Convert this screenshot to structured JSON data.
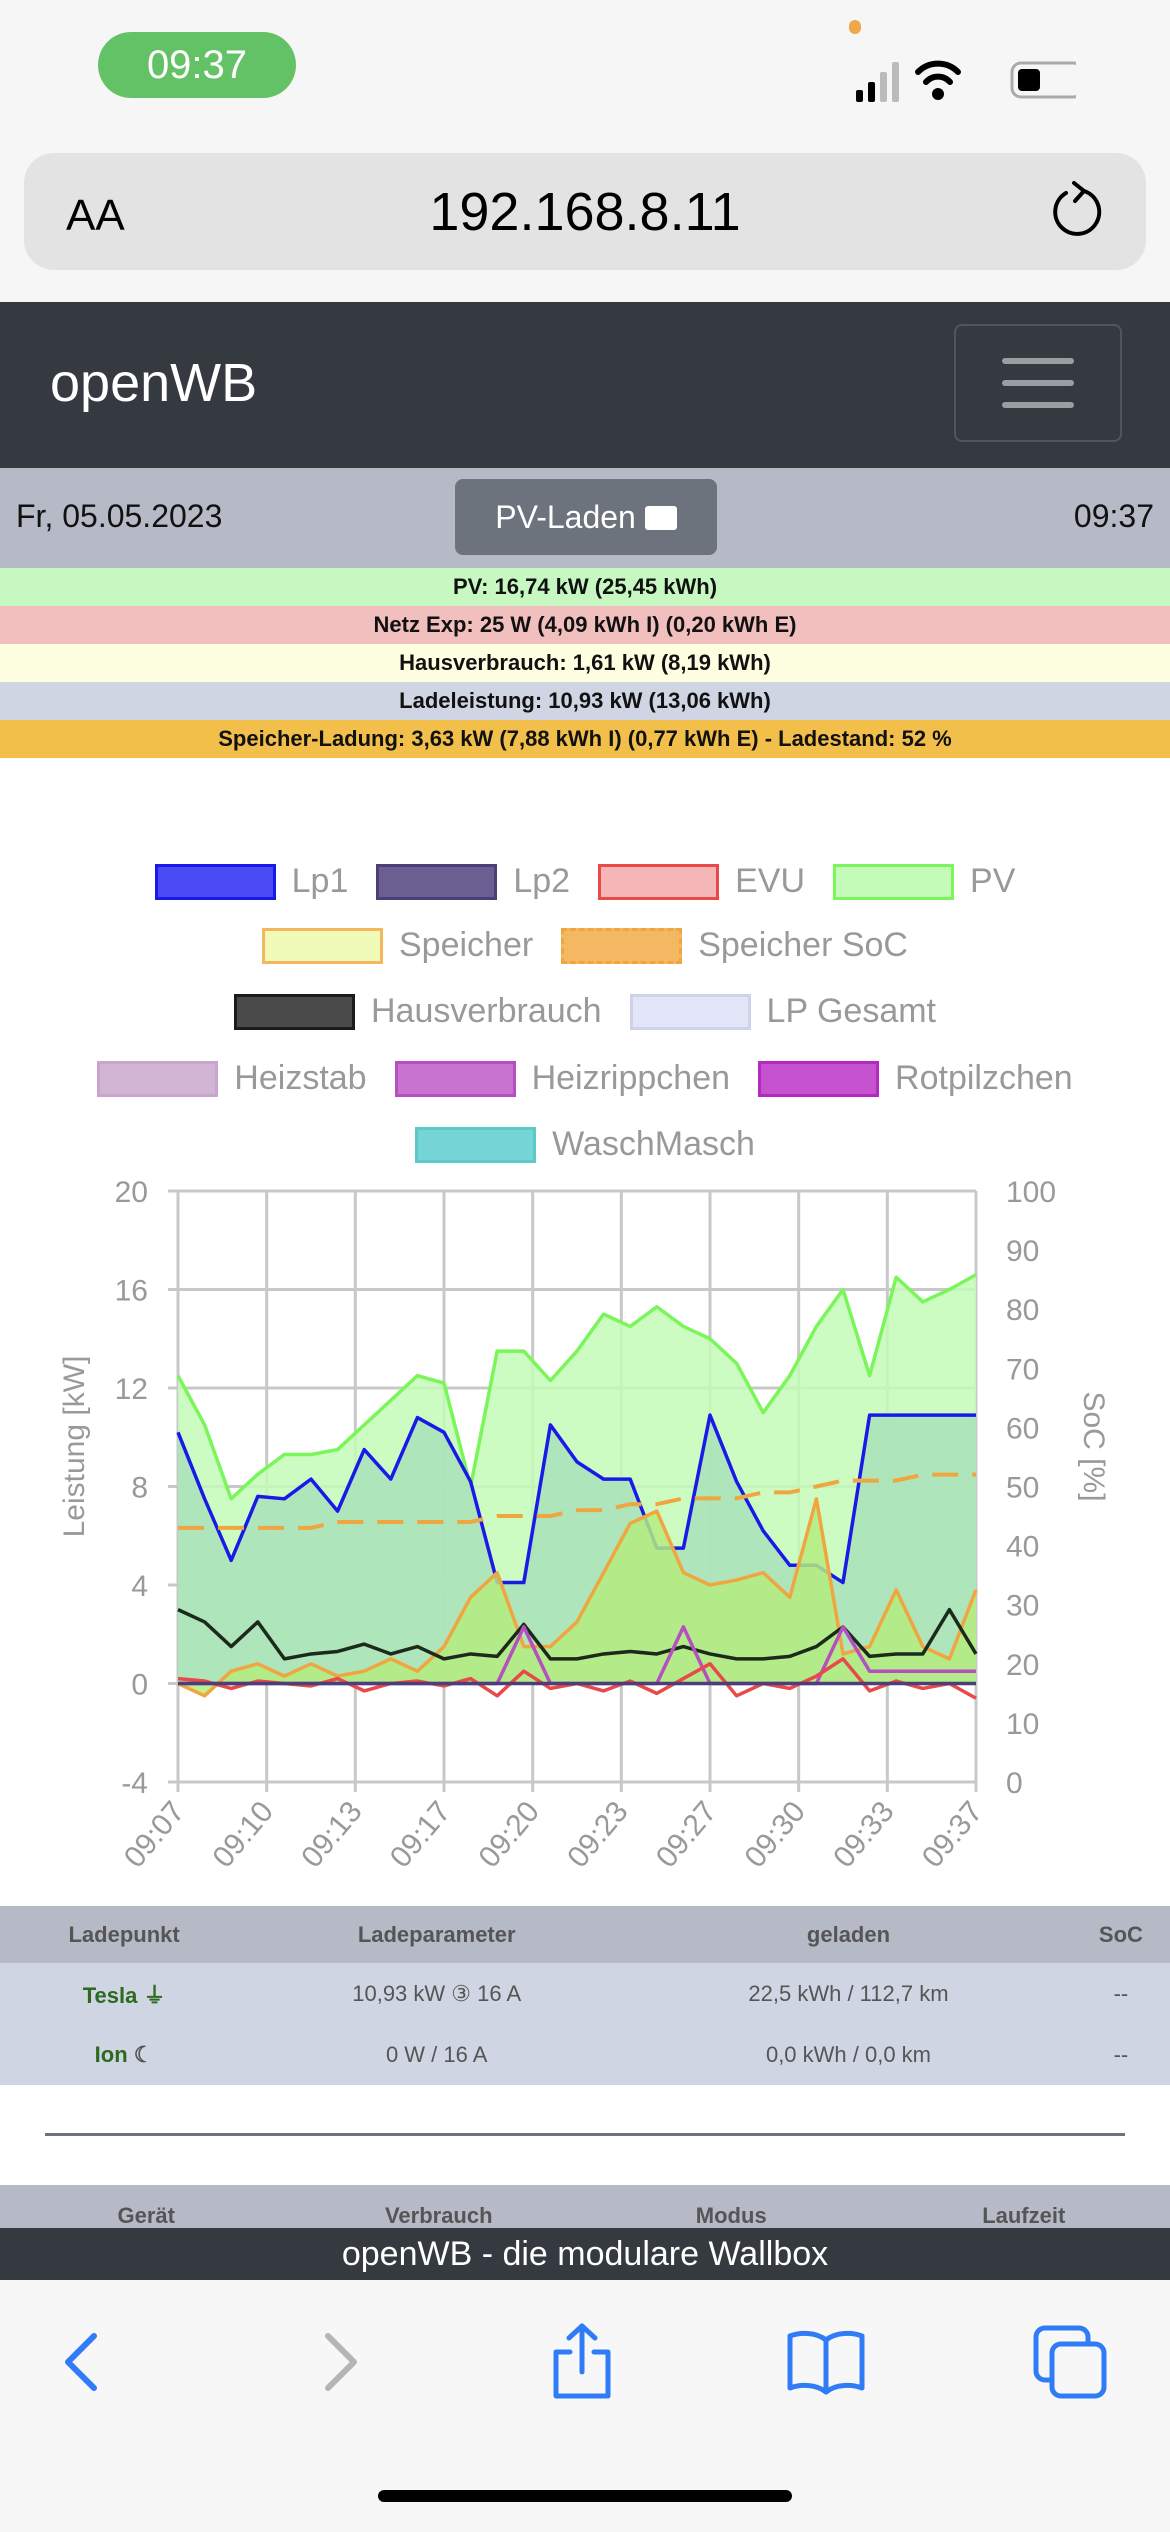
{
  "statusbar": {
    "time": "09:37"
  },
  "browser": {
    "text_size_label": "AA",
    "url": "192.168.8.11"
  },
  "nav": {
    "brand": "openWB"
  },
  "datebar": {
    "date": "Fr, 05.05.2023",
    "mode_button": "PV-Laden",
    "time": "09:37"
  },
  "status_rows": [
    {
      "text": "PV: 16,74 kW (25,45 kWh)",
      "color": "#c7f8c1"
    },
    {
      "text": "Netz Exp: 25 W (4,09 kWh I) (0,20 kWh E)",
      "color": "#f2bfbf"
    },
    {
      "text": "Hausverbrauch: 1,61 kW (8,19 kWh)",
      "color": "#fefee0"
    },
    {
      "text": "Ladeleistung: 10,93 kW (13,06 kWh)",
      "color": "#d0d5e4"
    },
    {
      "text": "Speicher-Ladung: 3,63 kW (7,88 kWh I) (0,77 kWh E) - Ladestand: 52 %",
      "color": "#f2bf4a"
    }
  ],
  "legend": [
    [
      {
        "label": "Lp1",
        "fill": "#4b4bf5",
        "stroke": "#1a1ae8"
      },
      {
        "label": "Lp2",
        "fill": "#6b5f92",
        "stroke": "#4a3f78"
      },
      {
        "label": "EVU",
        "fill": "#f4b6b6",
        "stroke": "#e84a4a"
      },
      {
        "label": "PV",
        "fill": "#c4fbb8",
        "stroke": "#7af55a"
      }
    ],
    [
      {
        "label": "Speicher",
        "fill": "#f1fbb8",
        "stroke": "#f3b760"
      },
      {
        "label": "Speicher SoC",
        "fill": "#f4b762",
        "stroke": "#f0a640"
      }
    ],
    [
      {
        "label": "Hausverbrauch",
        "fill": "#4a4a4a",
        "stroke": "#1c1c1c"
      },
      {
        "label": "LP Gesamt",
        "fill": "#e3e5f8",
        "stroke": "#d0d2e8"
      }
    ],
    [
      {
        "label": "Heizstab",
        "fill": "#d2b4d4",
        "stroke": "#c9a4cc"
      },
      {
        "label": "Heizrippchen",
        "fill": "#c874d0",
        "stroke": "#b550c0"
      },
      {
        "label": "Rotpilzchen",
        "fill": "#c652cf",
        "stroke": "#b42ac0"
      }
    ],
    [
      {
        "label": "WaschMasch",
        "fill": "#76d6d6",
        "stroke": "#5cc8c8"
      }
    ]
  ],
  "chart_data": {
    "type": "line",
    "x_ticks": [
      "09:07",
      "09:10",
      "09:13",
      "09:17",
      "09:20",
      "09:23",
      "09:27",
      "09:30",
      "09:33",
      "09:37"
    ],
    "x_minutes_from_start": [
      0,
      1,
      2,
      3,
      4,
      5,
      6,
      7,
      8,
      9,
      10,
      11,
      12,
      13,
      14,
      15,
      16,
      17,
      18,
      19,
      20,
      21,
      22,
      23,
      24,
      25,
      26,
      27,
      28,
      29,
      30
    ],
    "ylabel": "Leistung [kW]",
    "ylim": [
      -4,
      20
    ],
    "yticks": [
      -4,
      0,
      4,
      8,
      12,
      16,
      20
    ],
    "y2label": "SoC [%]",
    "y2lim": [
      0,
      100
    ],
    "y2ticks": [
      0,
      10,
      20,
      30,
      40,
      50,
      60,
      70,
      80,
      90,
      100
    ],
    "grid": true,
    "series": [
      {
        "name": "PV",
        "axis": "left",
        "color": "#7af55a",
        "fill": "#c4fbb8",
        "values": [
          12.5,
          10.5,
          7.5,
          8.5,
          9.3,
          9.3,
          9.5,
          10.5,
          11.5,
          12.5,
          12.2,
          8,
          13.5,
          13.5,
          12.3,
          13.5,
          15,
          14.5,
          15.3,
          14.5,
          14,
          13,
          11,
          12.5,
          14.5,
          16,
          12.5,
          16.5,
          15.5,
          16,
          16.6
        ]
      },
      {
        "name": "Lp1",
        "axis": "left",
        "color": "#1a1ae8",
        "fill": "#a8e0b8",
        "values": [
          10.2,
          7.5,
          5,
          7.6,
          7.5,
          8.3,
          7,
          9.5,
          8.3,
          10.8,
          10.2,
          8.2,
          4.1,
          4.1,
          10.5,
          9,
          8.3,
          8.3,
          5.5,
          5.5,
          10.9,
          8.2,
          6.2,
          4.8,
          4.8,
          4.1,
          10.9,
          10.9,
          10.9,
          10.9,
          10.9
        ]
      },
      {
        "name": "Speicher",
        "axis": "left",
        "color": "#f0a640",
        "fill": "#b5ec80",
        "values": [
          0,
          -0.5,
          0.5,
          0.8,
          0.3,
          0.8,
          0.3,
          0.5,
          1,
          0.5,
          1.5,
          3.5,
          4.5,
          1.5,
          1.5,
          2.5,
          4.5,
          6.5,
          7,
          4.5,
          4,
          4.2,
          4.5,
          3.5,
          7.5,
          1.2,
          1.5,
          3.8,
          1.5,
          1,
          3.8
        ]
      },
      {
        "name": "Hausverbrauch",
        "axis": "left",
        "color": "#1c2a1c",
        "values": [
          3,
          2.5,
          1.5,
          2.5,
          1,
          1.2,
          1.3,
          1.6,
          1.2,
          1.5,
          1,
          1.2,
          1.1,
          2.4,
          1,
          1,
          1.2,
          1.3,
          1.2,
          1.5,
          1.2,
          1,
          1,
          1.1,
          1.5,
          2.3,
          1.1,
          1.2,
          1.2,
          3,
          1.2
        ]
      },
      {
        "name": "Heizrippchen",
        "axis": "left",
        "color": "#b550c0",
        "values": [
          0,
          0,
          0,
          0,
          0,
          0,
          0,
          0,
          0,
          0,
          0,
          0,
          0,
          2.3,
          0,
          0,
          0,
          0,
          0,
          2.3,
          0,
          0,
          0,
          0,
          0,
          2.3,
          0.5,
          0.5,
          0.5,
          0.5,
          0.5
        ]
      },
      {
        "name": "EVU",
        "axis": "left",
        "color": "#e84a4a",
        "values": [
          0.2,
          0.1,
          -0.2,
          0.1,
          0,
          -0.1,
          0.2,
          -0.3,
          0,
          0.1,
          -0.1,
          0.2,
          -0.5,
          0.5,
          -0.2,
          0,
          -0.3,
          0.1,
          -0.4,
          0.2,
          0.8,
          -0.5,
          0,
          -0.2,
          0.3,
          1,
          -0.3,
          0.1,
          -0.2,
          0,
          -0.6
        ]
      },
      {
        "name": "Lp2",
        "axis": "left",
        "color": "#4a3f78",
        "values": [
          0,
          0,
          0,
          0,
          0,
          0,
          0,
          0,
          0,
          0,
          0,
          0,
          0,
          0,
          0,
          0,
          0,
          0,
          0,
          0,
          0,
          0,
          0,
          0,
          0,
          0,
          0,
          0,
          0,
          0,
          0
        ]
      },
      {
        "name": "Speicher SoC",
        "axis": "right",
        "color": "#f0a640",
        "dashed": true,
        "values": [
          43,
          43,
          43,
          43,
          43,
          43,
          44,
          44,
          44,
          44,
          44,
          44,
          45,
          45,
          45,
          46,
          46,
          47,
          47,
          48,
          48,
          48,
          49,
          49,
          50,
          51,
          51,
          51,
          52,
          52,
          52
        ]
      }
    ]
  },
  "ladepunkt_table": {
    "headers": [
      "Ladepunkt",
      "Ladeparameter",
      "geladen",
      "SoC"
    ],
    "rows": [
      {
        "name": "Tesla",
        "icon": "plug-icon",
        "params": "10,93 kW ③ 16 A",
        "charged": "22,5 kWh / 112,7 km",
        "soc": "--"
      },
      {
        "name": "Ion",
        "icon": "moon-icon",
        "params": "0 W / 16 A",
        "charged": "0,0 kWh / 0,0 km",
        "soc": "--"
      }
    ]
  },
  "device_table": {
    "headers": [
      "Gerät",
      "Verbrauch",
      "Modus",
      "Laufzeit"
    ]
  },
  "footer": {
    "text": "openWB - die modulare Wallbox"
  }
}
